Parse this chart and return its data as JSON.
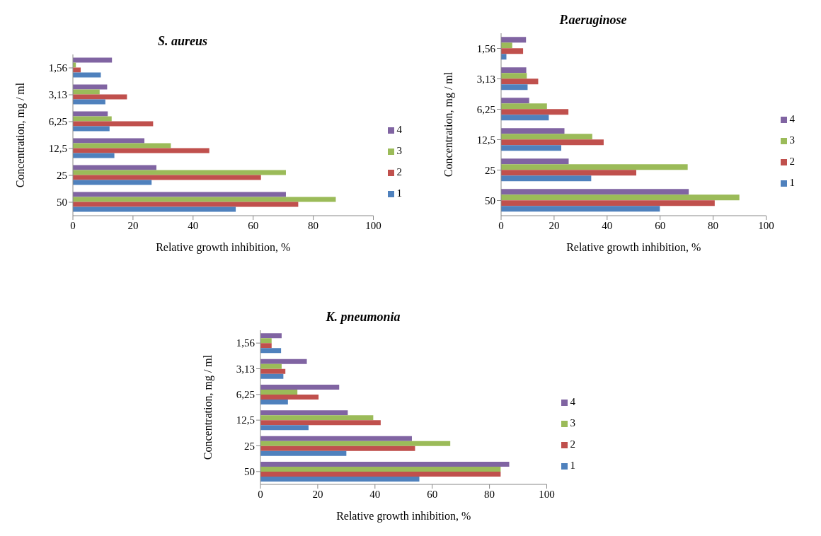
{
  "chart_data": [
    {
      "type": "bar",
      "orientation": "horizontal",
      "title": "S. aureus",
      "xlabel": "Relative growth inhibition, %",
      "ylabel": "Concentration, mg / ml",
      "categories": [
        "1,56",
        "3,13",
        "6,25",
        "12,5",
        "25",
        "50"
      ],
      "xlim": [
        0,
        100
      ],
      "xticks": [
        0,
        20,
        40,
        60,
        80,
        100
      ],
      "grid": false,
      "legend": "right",
      "series": [
        {
          "name": "4",
          "color": "#8064a2",
          "values": [
            13.0,
            11.4,
            11.6,
            23.8,
            27.8,
            70.9
          ]
        },
        {
          "name": "3",
          "color": "#9bbb59",
          "values": [
            1.0,
            8.9,
            12.9,
            32.6,
            70.9,
            87.5
          ]
        },
        {
          "name": "2",
          "color": "#c0504d",
          "values": [
            2.6,
            18.0,
            26.7,
            45.4,
            62.6,
            75.0
          ]
        },
        {
          "name": "1",
          "color": "#4f81bd",
          "values": [
            9.3,
            10.8,
            12.2,
            13.8,
            26.2,
            54.2
          ]
        }
      ]
    },
    {
      "type": "bar",
      "orientation": "horizontal",
      "title": "P.aeruginose",
      "xlabel": "Relative growth inhibition, %",
      "ylabel": "Concentration, mg / ml",
      "categories": [
        "1,56",
        "3,13",
        "6,25",
        "12,5",
        "25",
        "50"
      ],
      "xlim": [
        0,
        100
      ],
      "xticks": [
        0,
        20,
        40,
        60,
        80,
        100
      ],
      "grid": false,
      "legend": "right",
      "series": [
        {
          "name": "4",
          "color": "#8064a2",
          "values": [
            9.4,
            9.5,
            10.6,
            23.9,
            25.5,
            70.8
          ]
        },
        {
          "name": "3",
          "color": "#9bbb59",
          "values": [
            4.2,
            9.7,
            17.3,
            34.4,
            70.4,
            89.9
          ]
        },
        {
          "name": "2",
          "color": "#c0504d",
          "values": [
            8.3,
            14.0,
            25.4,
            38.7,
            51.0,
            80.6
          ]
        },
        {
          "name": "1",
          "color": "#4f81bd",
          "values": [
            2.0,
            10.0,
            18.0,
            22.7,
            34.0,
            59.9
          ]
        }
      ]
    },
    {
      "type": "bar",
      "orientation": "horizontal",
      "title": "K. pneumonia",
      "xlabel": "Relative growth inhibition, %",
      "ylabel": "Concentration, mg / ml",
      "categories": [
        "1,56",
        "3,13",
        "6,25",
        "12,5",
        "25",
        "50"
      ],
      "xlim": [
        0,
        100
      ],
      "xticks": [
        0,
        20,
        40,
        60,
        80,
        100
      ],
      "grid": false,
      "legend": "right",
      "series": [
        {
          "name": "4",
          "color": "#8064a2",
          "values": [
            7.4,
            16.2,
            27.5,
            30.5,
            52.9,
            86.9
          ]
        },
        {
          "name": "3",
          "color": "#9bbb59",
          "values": [
            3.9,
            7.4,
            12.9,
            39.4,
            66.3,
            83.9
          ]
        },
        {
          "name": "2",
          "color": "#c0504d",
          "values": [
            3.9,
            8.7,
            20.3,
            42.0,
            54.0,
            83.9
          ]
        },
        {
          "name": "1",
          "color": "#4f81bd",
          "values": [
            7.2,
            8.0,
            9.6,
            16.8,
            30.0,
            55.5
          ]
        }
      ]
    }
  ]
}
